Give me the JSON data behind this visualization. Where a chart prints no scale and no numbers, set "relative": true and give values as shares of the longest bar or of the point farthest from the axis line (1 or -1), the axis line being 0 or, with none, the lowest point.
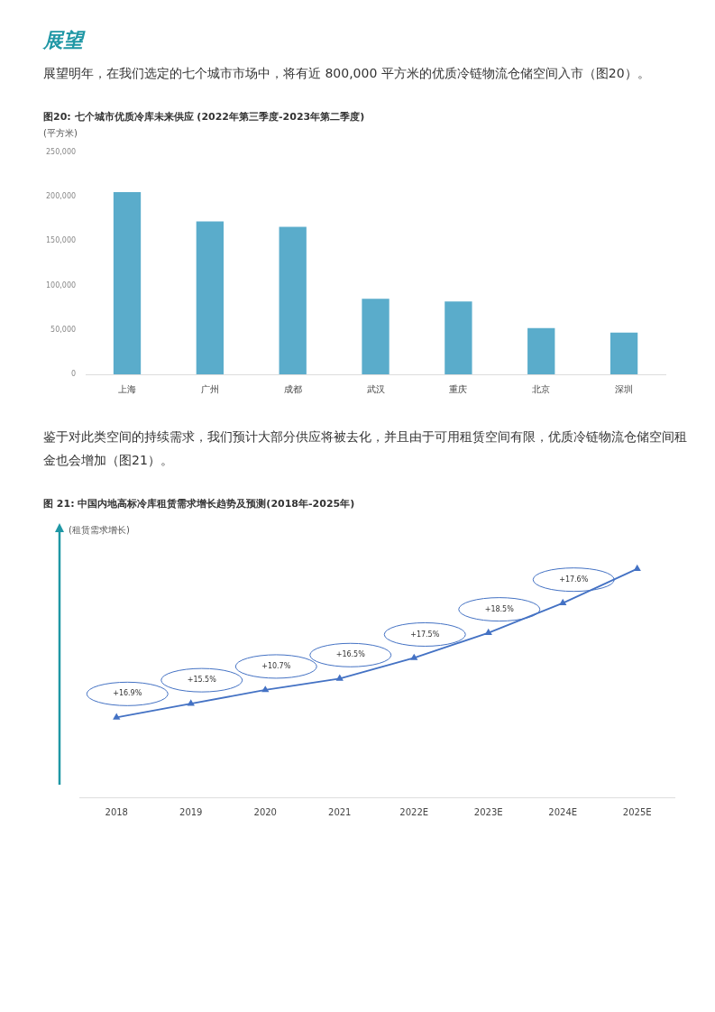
{
  "chart_data": [
    {
      "type": "bar",
      "title": "图20: 七个城市优质冷库未来供应 (2022年第三季度-2023年第二季度)",
      "ylabel": "(平方米)",
      "annotations": [
        "展望",
        "展望明年，在我们选定的七个城市市场中，将有近 800,000 平方米的优质冷链物流仓储空间入市（图20）。"
      ],
      "categories": [
        "上海",
        "广州",
        "成都",
        "武汉",
        "重庆",
        "北京",
        "深圳"
      ],
      "values": [
        205000,
        172000,
        166000,
        85000,
        82000,
        52000,
        47000
      ],
      "color": "#5aaccb",
      "ylim": [
        0,
        250000
      ],
      "yticks": [
        {
          "value": 0,
          "label": "0"
        },
        {
          "value": 50000,
          "label": "50,000"
        },
        {
          "value": 100000,
          "label": "100,000"
        },
        {
          "value": 150000,
          "label": "150,000"
        },
        {
          "value": 200000,
          "label": "200,000"
        },
        {
          "value": 250000,
          "label": "250,000"
        }
      ],
      "grid": false,
      "legend": false
    },
    {
      "type": "line",
      "title": "图 21: 中国内地高标冷库租赁需求增长趋势及预测(2018年-2025年)",
      "ylabel": "(租赁需求增长)",
      "relative": true,
      "categories": [
        "2018",
        "2019",
        "2020",
        "2021",
        "2022E",
        "2023E",
        "2024E",
        "2025E"
      ],
      "values": [
        0.35,
        0.41,
        0.47,
        0.52,
        0.61,
        0.72,
        0.85,
        1
      ],
      "color": "#4472c4",
      "marker": "triangle",
      "line_style": "solid",
      "annotations": [
        "鉴于对此类空间的持续需求，我们预计大部分供应将被去化，并且由于可用租赁空间有限，优质冷链物流仓储空间租金也会增加（图21）。",
        "+16.9%",
        "+15.5%",
        "+10.7%",
        "+16.5%",
        "+17.5%",
        "+18.5%",
        "+17.6%"
      ],
      "grid": false,
      "legend": false
    }
  ]
}
